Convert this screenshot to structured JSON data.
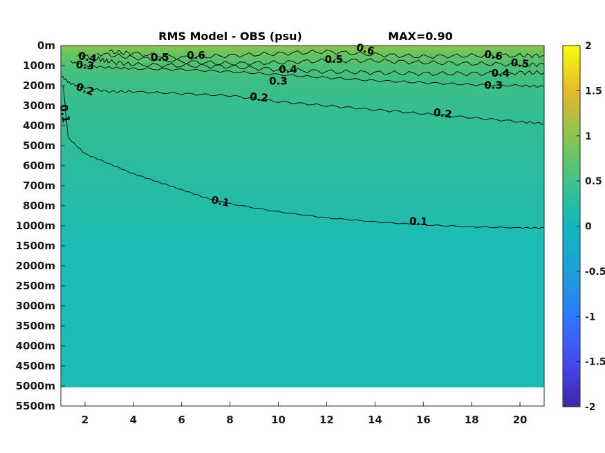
{
  "chart_data": {
    "type": "heatmap",
    "title": "RMS Model - OBS (psu)",
    "max_label": "MAX=0.90",
    "x_ticks": [
      2,
      4,
      6,
      8,
      10,
      12,
      14,
      16,
      18,
      20
    ],
    "xlim": [
      1,
      21
    ],
    "y_ticks": [
      "0m",
      "100m",
      "200m",
      "300m",
      "400m",
      "500m",
      "600m",
      "700m",
      "800m",
      "1000m",
      "1500m",
      "2000m",
      "2500m",
      "3000m",
      "3500m",
      "4000m",
      "4500m",
      "5000m",
      "5500m"
    ],
    "colorbar": {
      "min": -2,
      "max": 2,
      "ticks": [
        "2",
        "1.5",
        "1",
        "0.5",
        "0",
        "-0.5",
        "-1",
        "-1.5",
        "-2"
      ],
      "colormap": "parula"
    },
    "contour_levels": [
      0.1,
      0.2,
      0.3,
      0.4,
      0.5,
      0.6
    ],
    "contours": [
      {
        "level": 0.1,
        "x": [
          1.1,
          1.3,
          2,
          3,
          4,
          5,
          6,
          7,
          8,
          10,
          12,
          14,
          16,
          18,
          20,
          21
        ],
        "y": [
          2,
          4.6,
          5.4,
          5.9,
          6.4,
          6.8,
          7.2,
          7.6,
          7.9,
          8.3,
          8.6,
          8.8,
          8.95,
          9.05,
          9.1,
          9.1
        ]
      },
      {
        "level": 0.2,
        "x": [
          1,
          1.4,
          2,
          3,
          4,
          6,
          8,
          10,
          12,
          14,
          16,
          18,
          20,
          21
        ],
        "y": [
          1.5,
          1.9,
          2.1,
          2.3,
          2.3,
          2.4,
          2.5,
          2.8,
          3.0,
          3.2,
          3.4,
          3.6,
          3.8,
          3.9
        ]
      },
      {
        "level": 0.3,
        "x": [
          1.4,
          2,
          3,
          4,
          6,
          8,
          10,
          12,
          14,
          16,
          18,
          20,
          21
        ],
        "y": [
          0.8,
          1.0,
          1.1,
          1.15,
          1.2,
          1.3,
          1.45,
          1.6,
          1.75,
          1.85,
          1.95,
          2.0,
          2.05
        ]
      },
      {
        "level": 0.4,
        "x": [
          1.7,
          2.5,
          3,
          4,
          6,
          8,
          10,
          12,
          14,
          16,
          18,
          20,
          21
        ],
        "y": [
          0.45,
          0.65,
          0.8,
          0.95,
          1.0,
          1.05,
          1.2,
          1.3,
          1.35,
          1.4,
          1.4,
          1.35,
          1.35
        ]
      },
      {
        "level": 0.5,
        "x": [
          2.5,
          4,
          6,
          8,
          10,
          12,
          14,
          16,
          18,
          20,
          21
        ],
        "y": [
          0.4,
          0.6,
          0.8,
          0.9,
          0.85,
          0.75,
          0.75,
          0.85,
          0.9,
          0.95,
          0.95
        ]
      },
      {
        "level": 0.6,
        "x": [
          3,
          4,
          6,
          8,
          10,
          12,
          14,
          16,
          18,
          20,
          21
        ],
        "y": [
          0.3,
          0.4,
          0.6,
          0.5,
          0.4,
          0.3,
          0.45,
          0.55,
          0.5,
          0.5,
          0.5
        ]
      }
    ],
    "contour_labels": [
      {
        "text": "0.4",
        "x": 2.1,
        "y": 0.6,
        "rot": 10
      },
      {
        "text": "0.3",
        "x": 2.0,
        "y": 1.0,
        "rot": 5
      },
      {
        "text": "0.5",
        "x": 5.1,
        "y": 0.6,
        "rot": 0
      },
      {
        "text": "0.6",
        "x": 6.6,
        "y": 0.5,
        "rot": 0
      },
      {
        "text": "0.6",
        "x": 13.6,
        "y": 0.2,
        "rot": 15
      },
      {
        "text": "0.5",
        "x": 12.3,
        "y": 0.7,
        "rot": 0
      },
      {
        "text": "0.4",
        "x": 10.4,
        "y": 1.2,
        "rot": 0
      },
      {
        "text": "0.3",
        "x": 10.0,
        "y": 1.8,
        "rot": 0
      },
      {
        "text": "0.6",
        "x": 18.9,
        "y": 0.5,
        "rot": 8
      },
      {
        "text": "0.5",
        "x": 20.0,
        "y": 0.9,
        "rot": 5
      },
      {
        "text": "0.4",
        "x": 19.2,
        "y": 1.4,
        "rot": 0
      },
      {
        "text": "0.3",
        "x": 18.9,
        "y": 2.0,
        "rot": 0
      },
      {
        "text": "0.2",
        "x": 2.0,
        "y": 2.2,
        "rot": 20
      },
      {
        "text": "0.2",
        "x": 9.2,
        "y": 2.6,
        "rot": 5
      },
      {
        "text": "0.2",
        "x": 16.8,
        "y": 3.4,
        "rot": 8
      },
      {
        "text": "0.1",
        "x": 1.15,
        "y": 3.4,
        "rot": 80
      },
      {
        "text": "0.1",
        "x": 7.6,
        "y": 7.8,
        "rot": 12
      },
      {
        "text": "0.1",
        "x": 15.8,
        "y": 8.8,
        "rot": 2
      }
    ]
  }
}
